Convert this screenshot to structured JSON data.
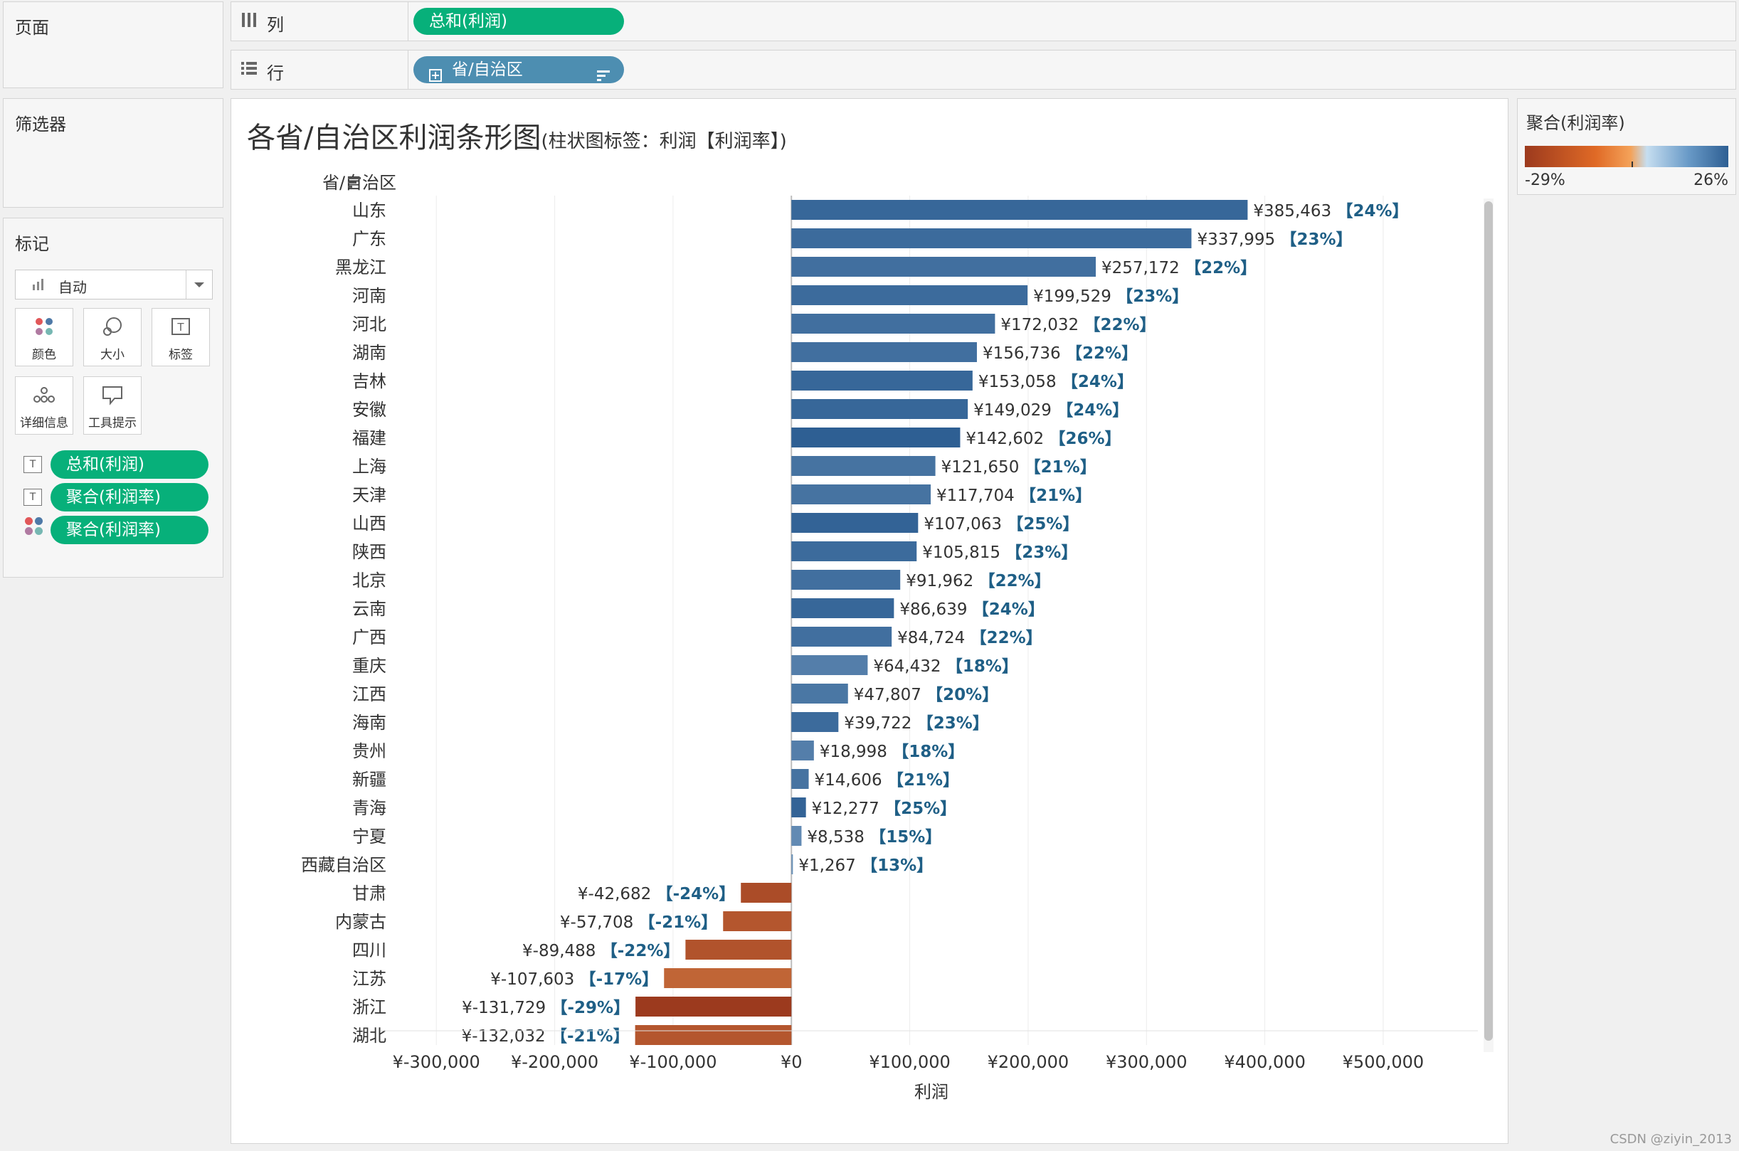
{
  "pages_panel": {
    "title": "页面"
  },
  "filters_panel": {
    "title": "筛选器"
  },
  "marks_panel": {
    "title": "标记",
    "mark_type": "自动",
    "cards": [
      {
        "label": "颜色",
        "icon": "color-icon"
      },
      {
        "label": "大小",
        "icon": "size-icon"
      },
      {
        "label": "标签",
        "icon": "label-icon"
      },
      {
        "label": "详细信息",
        "icon": "detail-icon"
      },
      {
        "label": "工具提示",
        "icon": "tooltip-icon"
      }
    ],
    "fields": [
      {
        "label": "总和(利润)",
        "type": "label-icon"
      },
      {
        "label": "聚合(利润率)",
        "type": "label-icon"
      },
      {
        "label": "聚合(利润率)",
        "type": "color-icon"
      }
    ]
  },
  "columns_shelf": {
    "title": "列",
    "pill": "总和(利润)"
  },
  "rows_shelf": {
    "title": "行",
    "pill": "省/自治区"
  },
  "legend": {
    "title": "聚合(利润率)",
    "min_label": "-29%",
    "max_label": "26%"
  },
  "chart_data": {
    "type": "bar",
    "orientation": "horizontal",
    "title": "各省/自治区利润条形图",
    "subtitle": "(柱状图标签：利润【利润率】)",
    "row_header": "省/自治区",
    "xlabel": "利润",
    "xlim": [
      -335000,
      580000
    ],
    "x_ticks": [
      -300000,
      -200000,
      -100000,
      0,
      100000,
      200000,
      300000,
      400000,
      500000
    ],
    "x_tick_labels": [
      "¥-300,000",
      "¥-200,000",
      "¥-100,000",
      "¥0",
      "¥100,000",
      "¥200,000",
      "¥300,000",
      "¥400,000",
      "¥500,000"
    ],
    "categories": [
      "山东",
      "广东",
      "黑龙江",
      "河南",
      "河北",
      "湖南",
      "吉林",
      "安徽",
      "福建",
      "上海",
      "天津",
      "山西",
      "陕西",
      "北京",
      "云南",
      "广西",
      "重庆",
      "江西",
      "海南",
      "贵州",
      "新疆",
      "青海",
      "宁夏",
      "西藏自治区",
      "甘肃",
      "内蒙古",
      "四川",
      "江苏",
      "浙江",
      "湖北"
    ],
    "values": [
      385463,
      337995,
      257172,
      199529,
      172032,
      156736,
      153058,
      149029,
      142602,
      121650,
      117704,
      107063,
      105815,
      91962,
      86639,
      84724,
      64432,
      47807,
      39722,
      18998,
      14606,
      12277,
      8538,
      1267,
      -42682,
      -57708,
      -89488,
      -107603,
      -131729,
      -132032
    ],
    "value_labels": [
      "¥385,463",
      "¥337,995",
      "¥257,172",
      "¥199,529",
      "¥172,032",
      "¥156,736",
      "¥153,058",
      "¥149,029",
      "¥142,602",
      "¥121,650",
      "¥117,704",
      "¥107,063",
      "¥105,815",
      "¥91,962",
      "¥86,639",
      "¥84,724",
      "¥64,432",
      "¥47,807",
      "¥39,722",
      "¥18,998",
      "¥14,606",
      "¥12,277",
      "¥8,538",
      "¥1,267",
      "¥-42,682",
      "¥-57,708",
      "¥-89,488",
      "¥-107,603",
      "¥-131,729",
      "¥-132,032"
    ],
    "rate_labels": [
      "【24%】",
      "【23%】",
      "【22%】",
      "【23%】",
      "【22%】",
      "【22%】",
      "【24%】",
      "【24%】",
      "【26%】",
      "【21%】",
      "【21%】",
      "【25%】",
      "【23%】",
      "【22%】",
      "【24%】",
      "【22%】",
      "【18%】",
      "【20%】",
      "【23%】",
      "【18%】",
      "【21%】",
      "【25%】",
      "【15%】",
      "【13%】",
      "【-24%】",
      "【-21%】",
      "【-22%】",
      "【-17%】",
      "【-29%】",
      "【-21%】"
    ],
    "rates": [
      24,
      23,
      22,
      23,
      22,
      22,
      24,
      24,
      26,
      21,
      21,
      25,
      23,
      22,
      24,
      22,
      18,
      20,
      23,
      18,
      21,
      25,
      15,
      13,
      -24,
      -21,
      -22,
      -17,
      -29,
      -21
    ],
    "colors": {
      "positive_max": "#2e5f93",
      "positive_min": "#c6def0",
      "negative_min": "#f4a259",
      "negative_max": "#9c3a1e",
      "rate_text": "#1f5f86"
    }
  },
  "watermark": "CSDN @ziyin_2013"
}
